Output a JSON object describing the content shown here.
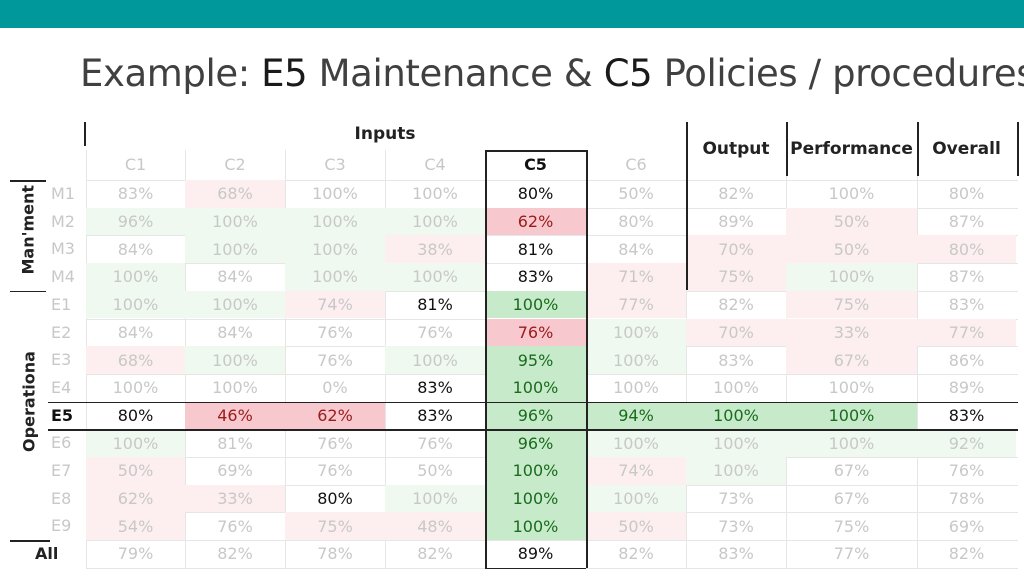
{
  "header": {
    "accent_color": "#00989a"
  },
  "title": {
    "prefix": "Example: ",
    "e5": "E5",
    "mid": " Maintenance & ",
    "c5": "C5",
    "suffix": " Policies / procedures"
  },
  "table": {
    "inputs_label": "Inputs",
    "columns": [
      "C1",
      "C2",
      "C3",
      "C4",
      "C5",
      "C6",
      "Output",
      "Performance",
      "Overall"
    ],
    "side_labels": {
      "management": "Man'ment",
      "operational": "Operationa",
      "all": "All"
    },
    "rows": [
      {
        "label": "M1",
        "values": [
          "83%",
          "68%",
          "100%",
          "100%",
          "80%",
          "50%",
          "82%",
          "100%",
          "80%"
        ]
      },
      {
        "label": "M2",
        "values": [
          "96%",
          "100%",
          "100%",
          "100%",
          "62%",
          "80%",
          "89%",
          "50%",
          "87%"
        ]
      },
      {
        "label": "M3",
        "values": [
          "84%",
          "100%",
          "100%",
          "38%",
          "81%",
          "84%",
          "70%",
          "50%",
          "80%"
        ]
      },
      {
        "label": "M4",
        "values": [
          "100%",
          "84%",
          "100%",
          "100%",
          "83%",
          "71%",
          "75%",
          "100%",
          "87%"
        ]
      },
      {
        "label": "E1",
        "values": [
          "100%",
          "100%",
          "74%",
          "81%",
          "100%",
          "77%",
          "82%",
          "75%",
          "83%"
        ]
      },
      {
        "label": "E2",
        "values": [
          "84%",
          "84%",
          "76%",
          "76%",
          "76%",
          "100%",
          "70%",
          "33%",
          "77%"
        ]
      },
      {
        "label": "E3",
        "values": [
          "68%",
          "100%",
          "76%",
          "100%",
          "95%",
          "100%",
          "83%",
          "67%",
          "86%"
        ]
      },
      {
        "label": "E4",
        "values": [
          "100%",
          "100%",
          "0%",
          "83%",
          "100%",
          "100%",
          "100%",
          "100%",
          "89%"
        ]
      },
      {
        "label": "E5",
        "values": [
          "80%",
          "46%",
          "62%",
          "83%",
          "96%",
          "94%",
          "100%",
          "100%",
          "83%"
        ]
      },
      {
        "label": "E6",
        "values": [
          "100%",
          "81%",
          "76%",
          "76%",
          "96%",
          "100%",
          "100%",
          "100%",
          "92%"
        ]
      },
      {
        "label": "E7",
        "values": [
          "50%",
          "69%",
          "76%",
          "50%",
          "100%",
          "74%",
          "100%",
          "67%",
          "76%"
        ]
      },
      {
        "label": "E8",
        "values": [
          "62%",
          "33%",
          "80%",
          "100%",
          "100%",
          "100%",
          "73%",
          "67%",
          "78%"
        ]
      },
      {
        "label": "E9",
        "values": [
          "54%",
          "76%",
          "75%",
          "48%",
          "100%",
          "50%",
          "73%",
          "75%",
          "69%"
        ]
      },
      {
        "label": "",
        "values": [
          "79%",
          "82%",
          "78%",
          "82%",
          "89%",
          "82%",
          "83%",
          "77%",
          "82%"
        ]
      }
    ]
  }
}
